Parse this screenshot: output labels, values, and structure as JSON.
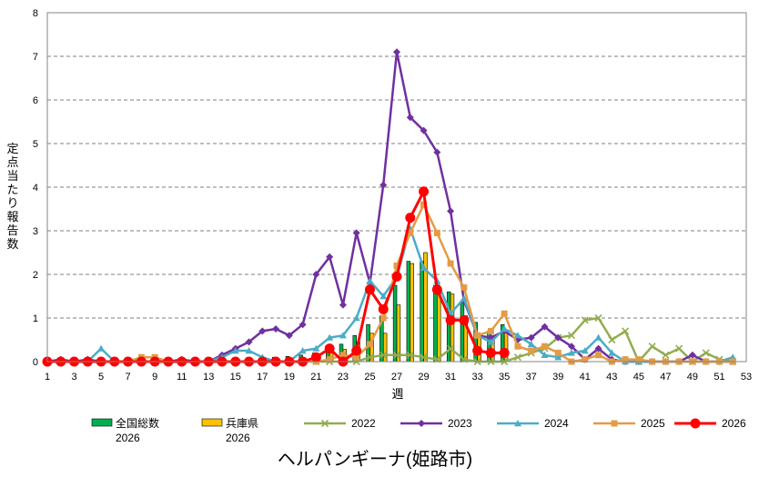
{
  "chart_data": {
    "type": "bar",
    "title": "ヘルパンギーナ(姫路市)",
    "xlabel": "週",
    "ylabel": "定点当たり報告数",
    "ylim": [
      0,
      8
    ],
    "yticks": [
      0,
      1,
      2,
      3,
      4,
      5,
      6,
      7,
      8
    ],
    "xlim": [
      1,
      53
    ],
    "xtick_labels": [
      "1",
      "3",
      "5",
      "7",
      "9",
      "11",
      "13",
      "15",
      "17",
      "19",
      "21",
      "23",
      "25",
      "27",
      "29",
      "31",
      "33",
      "35",
      "37",
      "39",
      "41",
      "43",
      "45",
      "47",
      "49",
      "51",
      "53"
    ],
    "grid": true,
    "legend_position": "bottom",
    "bar_series": [
      {
        "name": "全国総数",
        "name_line2": "2026",
        "color": "#00b050",
        "weeks": [
          1,
          2,
          3,
          4,
          5,
          6,
          7,
          8,
          9,
          10,
          11,
          12,
          13,
          14,
          15,
          16,
          17,
          18,
          19,
          20,
          21,
          22,
          23,
          24,
          25,
          26,
          27,
          28,
          29,
          30,
          31,
          32,
          33,
          34,
          35
        ],
        "values": [
          0.02,
          0.02,
          0.02,
          0.02,
          0.02,
          0.02,
          0.02,
          0.02,
          0.03,
          0.03,
          0.03,
          0.03,
          0.03,
          0.04,
          0.05,
          0.06,
          0.08,
          0.1,
          0.12,
          0.15,
          0.2,
          0.28,
          0.4,
          0.6,
          0.85,
          1.05,
          1.75,
          2.3,
          2.3,
          1.75,
          1.6,
          1.35,
          0.9,
          0.7,
          0.85
        ]
      },
      {
        "name": "兵庫県",
        "name_line2": "2026",
        "color": "#ffc000",
        "weeks": [
          1,
          2,
          3,
          4,
          5,
          6,
          7,
          8,
          9,
          10,
          11,
          12,
          13,
          14,
          15,
          16,
          17,
          18,
          19,
          20,
          21,
          22,
          23,
          24,
          25,
          26,
          27,
          28,
          29,
          30,
          31,
          32,
          33,
          34,
          35
        ],
        "values": [
          0.01,
          0.01,
          0.01,
          0.01,
          0.01,
          0.01,
          0.01,
          0.01,
          0.01,
          0.01,
          0.01,
          0.01,
          0.01,
          0.01,
          0.02,
          0.03,
          0.03,
          0.05,
          0.06,
          0.08,
          0.12,
          0.2,
          0.28,
          0.45,
          0.65,
          0.65,
          1.3,
          2.25,
          2.5,
          1.65,
          1.55,
          1.05,
          0.6,
          0.6,
          0.7
        ]
      }
    ],
    "line_series": [
      {
        "name": "2022",
        "color": "#92ad4f",
        "marker": "x",
        "weeks": [
          1,
          2,
          3,
          4,
          5,
          6,
          7,
          8,
          9,
          10,
          11,
          12,
          13,
          14,
          15,
          16,
          17,
          18,
          19,
          20,
          21,
          22,
          23,
          24,
          25,
          26,
          27,
          28,
          29,
          30,
          31,
          32,
          33,
          34,
          35,
          36,
          37,
          38,
          39,
          40,
          41,
          42,
          43,
          44,
          45,
          46,
          47,
          48,
          49,
          50,
          51,
          52
        ],
        "values": [
          0,
          0,
          0,
          0,
          0,
          0,
          0,
          0,
          0,
          0,
          0,
          0,
          0,
          0,
          0,
          0,
          0,
          0,
          0,
          0,
          0,
          0,
          0,
          0,
          0.1,
          0.15,
          0.15,
          0.15,
          0.1,
          0.05,
          0.3,
          0.05,
          0,
          0,
          0,
          0.1,
          0.2,
          0.3,
          0.55,
          0.6,
          0.95,
          1.0,
          0.5,
          0.7,
          0,
          0.35,
          0.15,
          0.3,
          0,
          0.2,
          0.05,
          0
        ]
      },
      {
        "name": "2023",
        "color": "#7030a0",
        "marker": "diamond",
        "weeks": [
          1,
          2,
          3,
          4,
          5,
          6,
          7,
          8,
          9,
          10,
          11,
          12,
          13,
          14,
          15,
          16,
          17,
          18,
          19,
          20,
          21,
          22,
          23,
          24,
          25,
          26,
          27,
          28,
          29,
          30,
          31,
          32,
          33,
          34,
          35,
          36,
          37,
          38,
          39,
          40,
          41,
          42,
          43,
          44,
          45,
          46,
          47,
          48,
          49,
          50,
          51,
          52
        ],
        "values": [
          0,
          0.05,
          0,
          0.05,
          0,
          0,
          0,
          0,
          0,
          0,
          0.05,
          0,
          0,
          0.15,
          0.3,
          0.45,
          0.7,
          0.75,
          0.6,
          0.85,
          2.0,
          2.4,
          1.3,
          2.95,
          1.8,
          4.05,
          7.1,
          5.6,
          5.3,
          4.8,
          3.45,
          1.4,
          0.6,
          0.55,
          0.7,
          0.5,
          0.55,
          0.8,
          0.55,
          0.35,
          0.05,
          0.3,
          0.05,
          0,
          0,
          0,
          0,
          0,
          0.15,
          0,
          0,
          0
        ]
      },
      {
        "name": "2024",
        "color": "#4bacc6",
        "marker": "triangle",
        "weeks": [
          1,
          2,
          3,
          4,
          5,
          6,
          7,
          8,
          9,
          10,
          11,
          12,
          13,
          14,
          15,
          16,
          17,
          18,
          19,
          20,
          21,
          22,
          23,
          24,
          25,
          26,
          27,
          28,
          29,
          30,
          31,
          32,
          33,
          34,
          35,
          36,
          37,
          38,
          39,
          40,
          41,
          42,
          43,
          44,
          45,
          46,
          47,
          48,
          49,
          50,
          51,
          52
        ],
        "values": [
          0,
          0,
          0,
          0,
          0.3,
          0,
          0,
          0,
          0,
          0,
          0,
          0,
          0,
          0.1,
          0.25,
          0.25,
          0.1,
          0,
          0,
          0.25,
          0.3,
          0.55,
          0.6,
          1.0,
          1.85,
          1.5,
          1.95,
          3.05,
          2.15,
          1.85,
          1.1,
          1.45,
          0.6,
          0.45,
          0.75,
          0.6,
          0.4,
          0.15,
          0.1,
          0.2,
          0.25,
          0.55,
          0.2,
          0,
          0,
          0,
          0,
          0,
          0,
          0,
          0,
          0.1
        ]
      },
      {
        "name": "2025",
        "color": "#e39b47",
        "marker": "square",
        "weeks": [
          1,
          2,
          3,
          4,
          5,
          6,
          7,
          8,
          9,
          10,
          11,
          12,
          13,
          14,
          15,
          16,
          17,
          18,
          19,
          20,
          21,
          22,
          23,
          24,
          25,
          26,
          27,
          28,
          29,
          30,
          31,
          32,
          33,
          34,
          35,
          36,
          37,
          38,
          39,
          40,
          41,
          42,
          43,
          44,
          45,
          46,
          47,
          48,
          49,
          50,
          51,
          52
        ],
        "values": [
          0,
          0,
          0,
          0,
          0,
          0,
          0,
          0.1,
          0.1,
          0,
          0,
          0,
          0,
          0,
          0,
          0,
          0,
          0,
          0,
          0,
          0,
          0.05,
          0.15,
          0.1,
          0.4,
          1.0,
          2.2,
          2.95,
          3.6,
          2.95,
          2.25,
          1.7,
          0.6,
          0.7,
          1.1,
          0.35,
          0.25,
          0.35,
          0.2,
          0,
          0.05,
          0.15,
          0,
          0.05,
          0.05,
          0,
          0,
          0,
          0,
          0,
          0,
          0
        ]
      },
      {
        "name": "2026",
        "color": "#ff0000",
        "marker": "circle",
        "weeks": [
          1,
          2,
          3,
          4,
          5,
          6,
          7,
          8,
          9,
          10,
          11,
          12,
          13,
          14,
          15,
          16,
          17,
          18,
          19,
          20,
          21,
          22,
          23,
          24,
          25,
          26,
          27,
          28,
          29,
          30,
          31,
          32,
          33,
          34,
          35
        ],
        "values": [
          0,
          0,
          0,
          0,
          0,
          0,
          0,
          0,
          0,
          0,
          0,
          0,
          0,
          0,
          0,
          0,
          0,
          0,
          0,
          0,
          0.1,
          0.3,
          0.0,
          0.25,
          1.65,
          1.2,
          1.95,
          3.3,
          3.9,
          1.65,
          0.95,
          0.95,
          0.25,
          0.2,
          0.2
        ]
      }
    ]
  }
}
